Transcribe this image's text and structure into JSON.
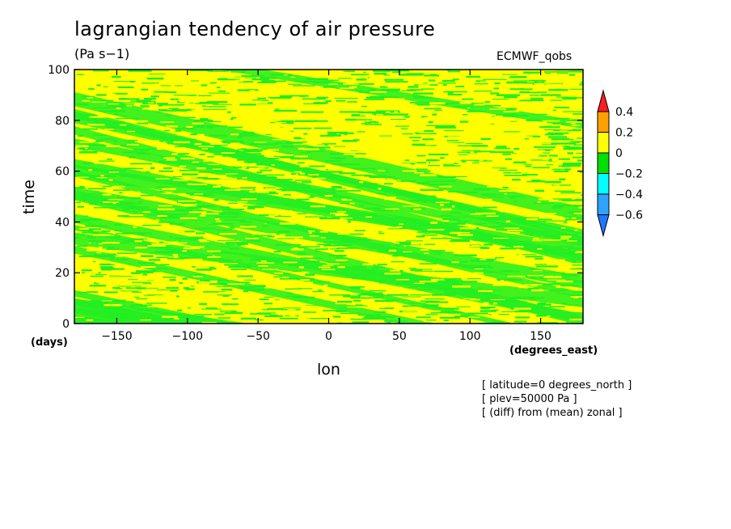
{
  "header": {
    "title": "lagrangian tendency of air pressure",
    "units": "(Pa s−1)",
    "source": "ECMWF_qobs"
  },
  "notes": [
    "[ latitude=0 degrees_north ]",
    "[ plev=50000 Pa ]",
    "[ (diff) from (mean) zonal ]"
  ],
  "chart_data": {
    "type": "heatmap",
    "title": "lagrangian tendency of air pressure",
    "subtitle": "(Pa s−1)",
    "xlabel": "lon",
    "ylabel": "time",
    "x_unit": "(degrees_east)",
    "y_unit": "(days)",
    "xlim": [
      -180,
      180
    ],
    "ylim": [
      0,
      100
    ],
    "x_ticks": [
      -150,
      -100,
      -50,
      0,
      50,
      100,
      150
    ],
    "x_tick_labels": [
      "−150",
      "−100",
      "−50",
      "0",
      "50",
      "100",
      "150"
    ],
    "y_ticks": [
      0,
      20,
      40,
      60,
      80,
      100
    ],
    "y_tick_labels": [
      "0",
      "20",
      "40",
      "60",
      "80",
      "100"
    ],
    "grid": false,
    "colorbar": {
      "levels": [
        -0.6,
        -0.4,
        -0.2,
        0,
        0.2,
        0.4
      ],
      "labels": [
        "−0.6",
        "−0.4",
        "−0.2",
        "0",
        "0.2",
        "0.4"
      ],
      "colors": [
        "#1e78ff",
        "#2ea3ff",
        "#00ffff",
        "#00e000",
        "#ffff00",
        "#ffa000",
        "#ff1e1e"
      ],
      "extend": "both"
    },
    "field_colors": {
      "negative": "#22ee22",
      "positive": "#ffff00"
    },
    "dominant_range": [
      -0.2,
      0.2
    ]
  }
}
